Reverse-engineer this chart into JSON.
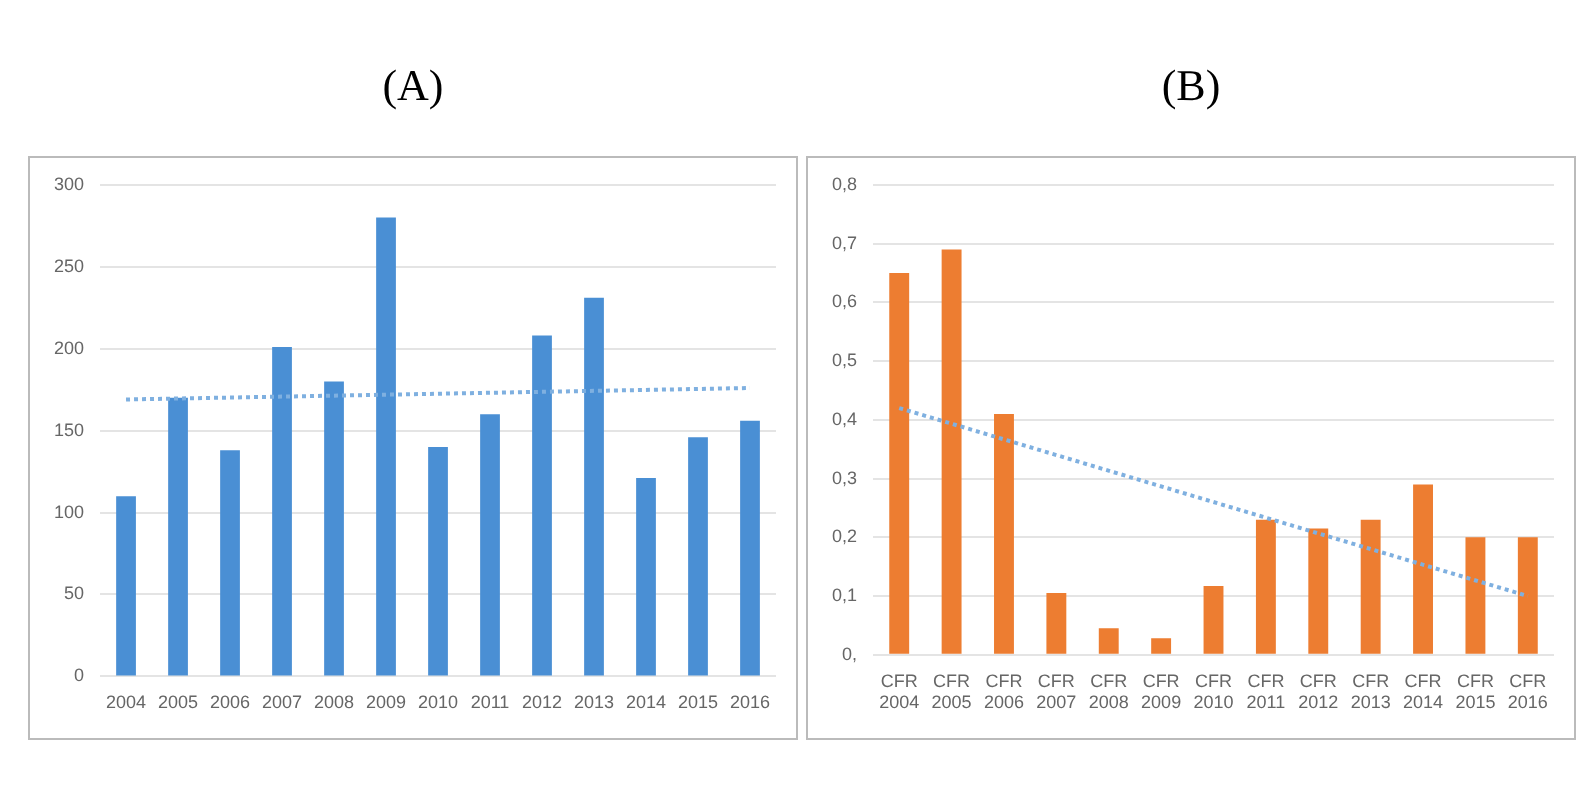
{
  "chart_data": [
    {
      "type": "bar",
      "title": "(A)",
      "categories": [
        "2004",
        "2005",
        "2006",
        "2007",
        "2008",
        "2009",
        "2010",
        "2011",
        "2012",
        "2013",
        "2014",
        "2015",
        "2016"
      ],
      "series": [
        {
          "color": "#4a8fd4",
          "values": [
            110,
            170,
            138,
            201,
            180,
            280,
            140,
            160,
            208,
            231,
            121,
            146,
            156
          ]
        },
        {
          "type": "line",
          "color": "#7fb0e0",
          "line_style": "dotted",
          "values": [
            169,
            null,
            null,
            null,
            null,
            null,
            null,
            null,
            null,
            null,
            null,
            null,
            176
          ]
        }
      ],
      "ylim": [
        0,
        300
      ],
      "yticks": [
        0,
        50,
        100,
        150,
        200,
        250,
        300
      ],
      "grid": "y"
    },
    {
      "type": "bar",
      "title": "(B)",
      "categories": [
        "CFR\n2004",
        "CFR\n2005",
        "CFR\n2006",
        "CFR\n2007",
        "CFR\n2008",
        "CFR\n2009",
        "CFR\n2010",
        "CFR\n2011",
        "CFR\n2012",
        "CFR\n2013",
        "CFR\n2014",
        "CFR\n2015",
        "CFR\n2016"
      ],
      "series": [
        {
          "color": "#ed7d31",
          "values": [
            0.65,
            0.69,
            0.41,
            0.105,
            0.045,
            0.028,
            0.117,
            0.23,
            0.215,
            0.23,
            0.29,
            0.2,
            0.2
          ]
        },
        {
          "type": "line",
          "color": "#7fb0e0",
          "line_style": "dotted",
          "values": [
            0.42,
            null,
            null,
            null,
            null,
            null,
            null,
            null,
            null,
            null,
            null,
            null,
            0.1
          ]
        }
      ],
      "ylim": [
        0,
        0.8
      ],
      "yticks": [
        {
          "value": 0,
          "label": "0,"
        },
        {
          "value": 0.1,
          "label": "0,1"
        },
        {
          "value": 0.2,
          "label": "0,2"
        },
        {
          "value": 0.3,
          "label": "0,3"
        },
        {
          "value": 0.4,
          "label": "0,4"
        },
        {
          "value": 0.5,
          "label": "0,5"
        },
        {
          "value": 0.6,
          "label": "0,6"
        },
        {
          "value": 0.7,
          "label": "0,7"
        },
        {
          "value": 0.8,
          "label": "0,8"
        }
      ],
      "grid": "y"
    }
  ]
}
